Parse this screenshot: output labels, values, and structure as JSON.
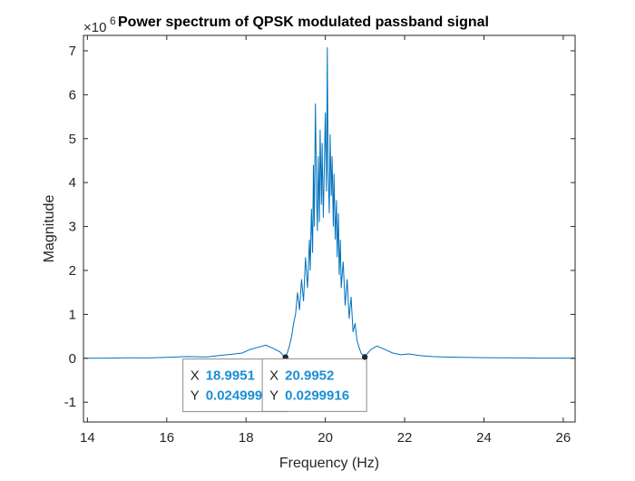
{
  "chart_data": {
    "type": "line",
    "title": "Power spectrum of QPSK modulated passband signal",
    "xlabel": "Frequency (Hz)",
    "ylabel": "Magnitude",
    "y_exponent_base": "×10",
    "y_exponent_power": "6",
    "xlim": [
      13.9,
      26.3
    ],
    "ylim": [
      -1.45,
      7.35
    ],
    "xticks": [
      "14",
      "16",
      "18",
      "20",
      "22",
      "24",
      "26"
    ],
    "yticks": [
      "-1",
      "0",
      "1",
      "2",
      "3",
      "4",
      "5",
      "6",
      "7"
    ],
    "series_color": "#0072BD",
    "grid": false,
    "series": [
      {
        "x": [
          13.9,
          14.5,
          15.0,
          15.5,
          16.0,
          16.5,
          17.0,
          17.3,
          17.6,
          17.9,
          18.1,
          18.3,
          18.5,
          18.7,
          18.85,
          18.95,
          19.0,
          19.05,
          19.1,
          19.15,
          19.2,
          19.25,
          19.3,
          19.35,
          19.4,
          19.45,
          19.5,
          19.55,
          19.6,
          19.62,
          19.65,
          19.68,
          19.7,
          19.72,
          19.75,
          19.78,
          19.8,
          19.82,
          19.85,
          19.87,
          19.9,
          19.92,
          19.95,
          19.97,
          20.0,
          20.03,
          20.05,
          20.07,
          20.1,
          20.12,
          20.15,
          20.17,
          20.2,
          20.22,
          20.25,
          20.28,
          20.3,
          20.33,
          20.35,
          20.38,
          20.4,
          20.45,
          20.5,
          20.55,
          20.6,
          20.65,
          20.7,
          20.75,
          20.8,
          20.85,
          20.9,
          20.95,
          21.0,
          21.05,
          21.15,
          21.3,
          21.5,
          21.7,
          21.9,
          22.1,
          22.4,
          22.7,
          23.0,
          23.5,
          24.0,
          24.5,
          25.0,
          25.5,
          26.0,
          26.3
        ],
        "y": [
          0.0,
          0.005,
          0.01,
          0.008,
          0.02,
          0.04,
          0.03,
          0.06,
          0.09,
          0.12,
          0.2,
          0.25,
          0.3,
          0.22,
          0.15,
          0.05,
          0.025,
          0.15,
          0.3,
          0.5,
          0.8,
          1.0,
          1.5,
          1.1,
          1.8,
          1.3,
          2.3,
          1.6,
          2.7,
          2.0,
          3.4,
          2.4,
          4.4,
          3.0,
          5.8,
          3.6,
          2.9,
          4.6,
          3.1,
          5.2,
          3.5,
          4.9,
          3.2,
          4.1,
          5.6,
          3.8,
          7.08,
          4.3,
          3.3,
          5.1,
          3.7,
          4.6,
          3.0,
          4.2,
          2.7,
          3.6,
          2.3,
          3.3,
          1.9,
          2.7,
          1.6,
          2.2,
          1.2,
          1.8,
          0.9,
          1.4,
          0.6,
          0.8,
          0.4,
          0.25,
          0.12,
          0.06,
          0.03,
          0.1,
          0.2,
          0.28,
          0.2,
          0.12,
          0.08,
          0.1,
          0.06,
          0.04,
          0.03,
          0.02,
          0.015,
          0.01,
          0.008,
          0.005,
          0.004,
          0.0
        ]
      }
    ],
    "datatips": [
      {
        "x_label": "X",
        "x_value": "18.9951",
        "y_label": "Y",
        "y_value": "0.0249994",
        "x": 18.9951,
        "y": 0.0249994
      },
      {
        "x_label": "X",
        "x_value": "20.9952",
        "y_label": "Y",
        "y_value": "0.0299916",
        "x": 20.9952,
        "y": 0.0299916
      }
    ]
  }
}
